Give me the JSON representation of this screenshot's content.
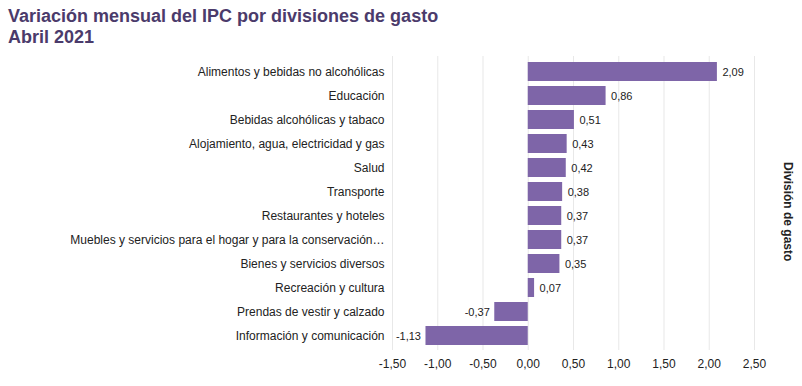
{
  "chart_data": {
    "type": "bar",
    "orientation": "horizontal",
    "title": "Variación mensual del IPC por divisiones de gasto",
    "subtitle": "Abril 2021",
    "y_label": "División de gasto",
    "categories": [
      "Alimentos y bebidas no alcohólicas",
      "Educación",
      "Bebidas alcohólicas y tabaco",
      "Alojamiento, agua, electricidad y gas",
      "Salud",
      "Transporte",
      "Restaurantes y hoteles",
      "Muebles y servicios para el hogar y para la conservación…",
      "Bienes y servicios diversos",
      "Recreación y cultura",
      "Prendas de vestir y calzado",
      "Información y comunicación"
    ],
    "values": [
      2.09,
      0.86,
      0.51,
      0.43,
      0.42,
      0.38,
      0.37,
      0.37,
      0.35,
      0.07,
      -0.37,
      -1.13
    ],
    "value_labels": [
      "2,09",
      "0,86",
      "0,51",
      "0,43",
      "0,42",
      "0,38",
      "0,37",
      "0,37",
      "0,35",
      "0,07",
      "-0,37",
      "-1,13"
    ],
    "data_labels": true,
    "color": "#7e65a8",
    "xlim": [
      -1.5,
      2.5
    ],
    "xticks": [
      {
        "value": -1.5,
        "label": "-1,50"
      },
      {
        "value": -1,
        "label": "-1,00"
      },
      {
        "value": -0.5,
        "label": "-0,50"
      },
      {
        "value": 0,
        "label": "0,00"
      },
      {
        "value": 0.5,
        "label": "0,50"
      },
      {
        "value": 1,
        "label": "1,00"
      },
      {
        "value": 1.5,
        "label": "1,50"
      },
      {
        "value": 2,
        "label": "2,00"
      },
      {
        "value": 2.5,
        "label": "2,50"
      }
    ],
    "grid": true
  }
}
